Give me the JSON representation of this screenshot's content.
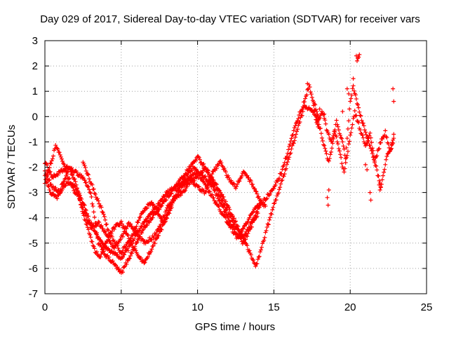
{
  "chart_data": {
    "type": "scatter",
    "title": "Day 029 of 2017, Sidereal Day-to-day VTEC variation (SDTVAR) for receiver vars",
    "xlabel": "GPS time / hours",
    "ylabel": "SDTVAR / TECUs",
    "xlim": [
      0,
      25
    ],
    "ylim": [
      -7,
      3
    ],
    "xticks": [
      0,
      5,
      10,
      15,
      20,
      25
    ],
    "yticks": [
      -7,
      -6,
      -5,
      -4,
      -3,
      -2,
      -1,
      0,
      1,
      2,
      3
    ],
    "grid": true,
    "marker": "+",
    "series": [
      {
        "name": "SDTVAR",
        "color": "#ff0000",
        "strands": [
          {
            "x": [
              0,
              0.5,
              1.0,
              1.5,
              2.0,
              2.5,
              3.0,
              3.5,
              4.0,
              4.5,
              5.0,
              5.5,
              6.0,
              6.5,
              7.0,
              7.5,
              8.0,
              8.5,
              9.0,
              9.5,
              10.0,
              10.5,
              11.0,
              11.5,
              12.0,
              12.5,
              13.0,
              13.5,
              13.8,
              14.0,
              14.5,
              15.0,
              15.5,
              16.0,
              16.5,
              17.0,
              17.5,
              18.0
            ],
            "y": [
              -1.8,
              -2.4,
              -2.2,
              -2.0,
              -2.2,
              -2.4,
              -3.0,
              -5.0,
              -5.5,
              -5.8,
              -6.2,
              -5.6,
              -5.0,
              -4.4,
              -4.0,
              -3.6,
              -3.2,
              -2.8,
              -2.4,
              -2.0,
              -1.6,
              -2.0,
              -2.5,
              -3.0,
              -3.6,
              -4.2,
              -4.8,
              -5.5,
              -5.9,
              -5.6,
              -4.5,
              -3.5,
              -2.6,
              -1.6,
              -0.6,
              0.4,
              0.3,
              -0.5
            ]
          },
          {
            "x": [
              0,
              0.5,
              1.0,
              1.5,
              2.0,
              2.5,
              3.0,
              3.5,
              4.0,
              4.5,
              5.0,
              5.5,
              6.0,
              6.5,
              7.0,
              7.5,
              8.0,
              8.5,
              9.0,
              9.5,
              10.0,
              10.5,
              11.0,
              11.5,
              12.0,
              12.5,
              13.0,
              13.5,
              14.0,
              14.5,
              15.0,
              15.5,
              16.0,
              16.5,
              17.0,
              17.3,
              17.6,
              18.0
            ],
            "y": [
              -2.2,
              -2.8,
              -3.0,
              -2.6,
              -2.8,
              -3.4,
              -4.2,
              -4.8,
              -5.2,
              -5.4,
              -5.6,
              -5.2,
              -4.6,
              -4.2,
              -3.8,
              -3.4,
              -3.0,
              -2.8,
              -2.6,
              -2.4,
              -2.2,
              -2.4,
              -2.8,
              -3.4,
              -4.0,
              -4.6,
              -5.0,
              -4.4,
              -3.6,
              -3.2,
              -2.8,
              -2.2,
              -1.2,
              -0.2,
              0.6,
              1.2,
              0.6,
              -0.2
            ]
          },
          {
            "x": [
              0,
              0.3,
              0.7,
              1.0,
              1.4,
              1.8,
              2.2,
              2.6,
              3.0,
              3.5,
              4.0,
              4.5,
              5.0,
              5.5,
              6.0,
              6.5,
              7.0,
              7.5,
              8.0,
              8.5,
              9.0,
              9.5,
              10.0,
              10.5,
              11.0,
              11.5,
              12.0,
              12.5,
              13.0,
              13.5,
              14.0
            ],
            "y": [
              -2.6,
              -2.0,
              -1.2,
              -1.5,
              -2.2,
              -2.8,
              -3.2,
              -3.8,
              -4.4,
              -4.2,
              -4.6,
              -5.2,
              -4.8,
              -4.2,
              -4.6,
              -5.0,
              -4.8,
              -4.4,
              -3.6,
              -3.2,
              -3.0,
              -2.6,
              -2.4,
              -2.0,
              -2.6,
              -3.2,
              -3.8,
              -4.4,
              -4.8,
              -4.2,
              -3.8
            ]
          },
          {
            "x": [
              0,
              0.4,
              0.8,
              1.2,
              1.6,
              2.0,
              2.4,
              2.8,
              3.2,
              3.6,
              4.0,
              4.5,
              5.0,
              5.5,
              6.0,
              6.5,
              7.0,
              7.5,
              8.0,
              8.5,
              9.0,
              9.5,
              10.0,
              10.5,
              11.0,
              11.5,
              12.0,
              12.5,
              13.0,
              13.5,
              14.0,
              14.5
            ],
            "y": [
              -2.4,
              -3.0,
              -3.2,
              -2.6,
              -2.0,
              -2.6,
              -3.6,
              -4.4,
              -5.2,
              -5.6,
              -5.0,
              -4.4,
              -4.2,
              -4.8,
              -5.4,
              -5.8,
              -5.2,
              -4.6,
              -4.0,
              -3.2,
              -2.8,
              -2.4,
              -2.8,
              -3.0,
              -2.2,
              -1.8,
              -2.4,
              -2.8,
              -2.2,
              -2.6,
              -3.2,
              -3.6
            ]
          },
          {
            "x": [
              2.5,
              3.0,
              3.4,
              3.8,
              4.2,
              4.6,
              5.0,
              5.4,
              5.8,
              6.2,
              6.6,
              7.0,
              7.4,
              7.8,
              8.2,
              8.6,
              9.0,
              9.4,
              9.8,
              10.2,
              10.6,
              11.0,
              11.4,
              11.8,
              12.2,
              12.6,
              13.0,
              13.4,
              13.8,
              14.2
            ],
            "y": [
              -1.8,
              -2.6,
              -3.2,
              -3.8,
              -4.6,
              -5.0,
              -5.4,
              -5.0,
              -4.6,
              -4.0,
              -3.6,
              -3.4,
              -3.8,
              -4.2,
              -3.6,
              -3.0,
              -2.6,
              -2.2,
              -2.0,
              -2.4,
              -2.8,
              -3.2,
              -3.6,
              -4.0,
              -4.4,
              -4.8,
              -4.4,
              -4.0,
              -3.6,
              -3.4
            ]
          },
          {
            "x": [
              17.6,
              18.0,
              18.3,
              18.6,
              19.0,
              19.3,
              19.6,
              20.0,
              20.3,
              20.6,
              21.0,
              21.3,
              21.6,
              22.0,
              22.3,
              22.6,
              22.9
            ],
            "y": [
              0.4,
              -0.4,
              -1.2,
              -1.8,
              -0.6,
              -1.4,
              -2.2,
              -0.8,
              0.2,
              -0.4,
              -1.2,
              -0.6,
              -1.8,
              -1.0,
              -0.6,
              -1.4,
              -0.8
            ]
          },
          {
            "x": [
              17.8,
              18.2,
              18.5,
              18.8,
              19.1,
              19.4,
              19.7,
              20.0,
              20.2,
              20.5,
              20.8,
              21.1,
              21.4,
              21.7,
              22.0,
              22.4,
              22.7,
              22.9
            ],
            "y": [
              -0.2,
              0.2,
              -0.6,
              -1.0,
              -0.2,
              -0.8,
              -1.6,
              0.6,
              1.2,
              0.4,
              -0.2,
              -0.8,
              -1.4,
              -2.0,
              -2.8,
              -1.6,
              -1.2,
              -0.6
            ]
          }
        ],
        "extra": {
          "x": [
            20.4,
            20.5,
            20.6,
            20.55,
            20.45,
            18.5,
            18.55,
            18.6,
            21.3,
            21.35,
            21.9,
            21.95,
            22.0,
            21.0,
            21.1,
            19.8,
            19.9,
            19.5,
            20.2,
            22.8,
            22.85,
            17.2,
            17.25,
            18.0,
            18.3
          ],
          "y": [
            2.4,
            2.3,
            2.45,
            2.35,
            2.2,
            -3.2,
            -3.5,
            -2.9,
            -3.0,
            -3.3,
            -2.7,
            -2.9,
            -2.8,
            -1.9,
            -2.1,
            1.1,
            0.9,
            0.2,
            1.5,
            1.1,
            0.6,
            1.3,
            1.1,
            0.3,
            0.1
          ]
        }
      }
    ]
  }
}
